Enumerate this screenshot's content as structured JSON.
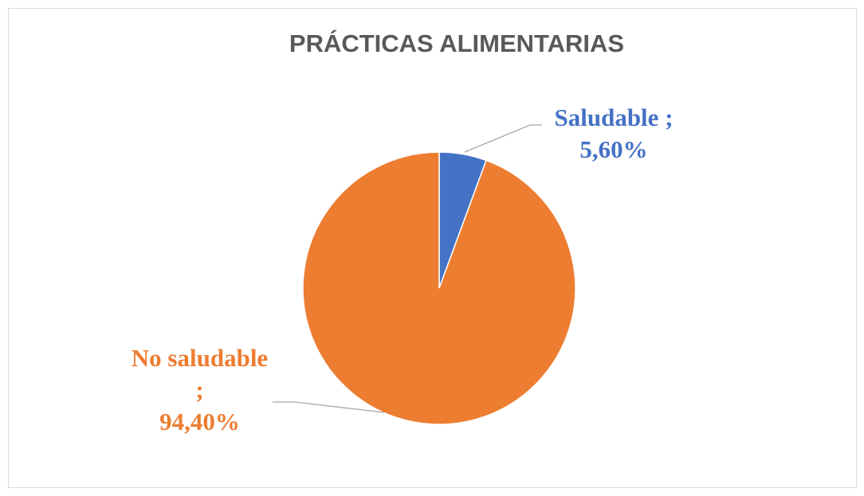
{
  "chart_data": {
    "type": "pie",
    "title": "PRÁCTICAS ALIMENTARIAS",
    "categories": [
      "Saludable",
      "No saludable"
    ],
    "values": [
      5.6,
      94.4
    ],
    "value_labels": [
      "5,60%",
      "94,40%"
    ],
    "label_separator": ";",
    "colors": [
      "#4472c4",
      "#ed7d31"
    ]
  }
}
